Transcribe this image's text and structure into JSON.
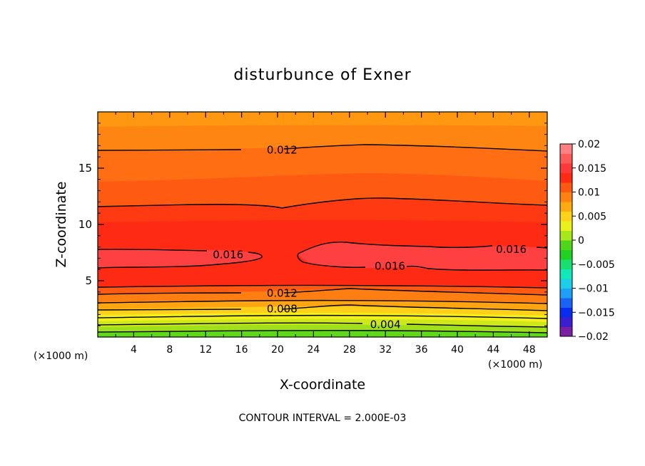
{
  "chart_data": {
    "type": "contour",
    "title": "disturbunce of Exner",
    "xlabel": "X-coordinate",
    "ylabel": "Z-coordinate",
    "x_unit_label": "(×1000 m)",
    "footer": "CONTOUR INTERVAL = 2.000E-03",
    "xlim": [
      0,
      50
    ],
    "ylim": [
      0,
      20
    ],
    "x_ticks": [
      4,
      8,
      12,
      16,
      20,
      24,
      28,
      32,
      36,
      40,
      44,
      48
    ],
    "y_ticks": [
      5,
      10,
      15
    ],
    "x_tick_labels": [
      "4",
      "8",
      "12",
      "16",
      "20",
      "24",
      "28",
      "32",
      "36",
      "40",
      "44",
      "48"
    ],
    "y_tick_labels": [
      "5",
      "10",
      "15"
    ],
    "contour_interval": 0.002,
    "colorbar": {
      "min": -0.02,
      "max": 0.02,
      "tick_values": [
        0.02,
        0.015,
        0.01,
        0.005,
        0,
        -0.005,
        -0.01,
        -0.015,
        -0.02
      ],
      "tick_labels": [
        "0.02",
        "0.015",
        "0.01",
        "0.005",
        "0",
        "−0.005",
        "−0.01",
        "−0.015",
        "−0.02"
      ],
      "band_colors": [
        "#7b1fa2",
        "#3a1fd0",
        "#0a2bf0",
        "#1a63f5",
        "#1f9ff8",
        "#1ccfe8",
        "#10e8b8",
        "#18e070",
        "#22d222",
        "#4fd61a",
        "#a8e81a",
        "#e8f21a",
        "#ffd21a",
        "#ffaa10",
        "#ff8210",
        "#ff5810",
        "#ff2a12",
        "#ff3838",
        "#ff5a5a",
        "#ff8080"
      ]
    },
    "contour_labels": [
      {
        "text": "0.012",
        "x": 20.5,
        "z": 16.6
      },
      {
        "text": "0.016",
        "x": 14.5,
        "z": 7.3
      },
      {
        "text": "0.016",
        "x": 32.5,
        "z": 6.3
      },
      {
        "text": "0.016",
        "x": 46.0,
        "z": 7.8
      },
      {
        "text": "0.012",
        "x": 20.5,
        "z": 3.9
      },
      {
        "text": "0.008",
        "x": 20.5,
        "z": 2.5
      },
      {
        "text": "0.004",
        "x": 32.0,
        "z": 1.1
      }
    ]
  }
}
